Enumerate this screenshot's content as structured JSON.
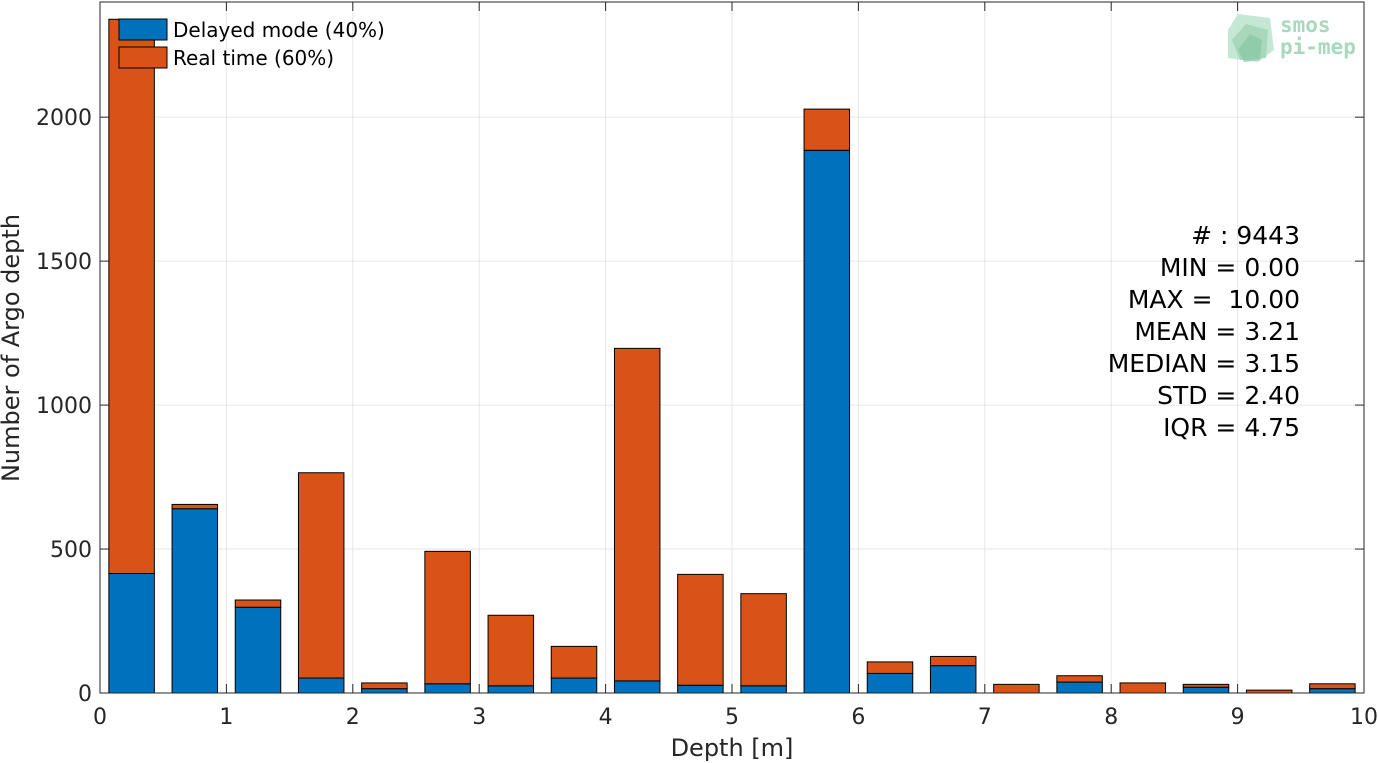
{
  "chart_data": {
    "type": "bar",
    "stacked": true,
    "x": [
      0.25,
      0.75,
      1.25,
      1.75,
      2.25,
      2.75,
      3.25,
      3.75,
      4.25,
      4.75,
      5.25,
      5.75,
      6.25,
      6.75,
      7.25,
      7.75,
      8.25,
      8.75,
      9.25,
      9.75
    ],
    "series": [
      {
        "name": "Delayed mode (40%)",
        "color": "#0072BD",
        "values": [
          415,
          640,
          298,
          52,
          15,
          32,
          25,
          52,
          42,
          27,
          25,
          1885,
          68,
          95,
          0,
          38,
          0,
          20,
          0,
          15
        ]
      },
      {
        "name": "Real time (60%)",
        "color": "#D95319",
        "values": [
          1925,
          15,
          25,
          713,
          20,
          460,
          245,
          110,
          1155,
          385,
          320,
          143,
          40,
          32,
          30,
          22,
          35,
          10,
          10,
          17
        ]
      }
    ],
    "xlabel": "Depth [m]",
    "ylabel": "Number of Argo depth",
    "xlim": [
      0,
      10
    ],
    "ylim": [
      0,
      2400
    ],
    "xticks": [
      0,
      1,
      2,
      3,
      4,
      5,
      6,
      7,
      8,
      9,
      10
    ],
    "yticks": [
      0,
      500,
      1000,
      1500,
      2000
    ],
    "grid": true,
    "legend_position": "top-left",
    "stats": [
      "# : 9443",
      "MIN = 0.00",
      "MAX =  10.00",
      "MEAN = 3.21",
      "MEDIAN = 3.15",
      "STD = 2.40",
      "IQR = 4.75"
    ]
  },
  "logo": {
    "line1": "smos",
    "line2": "pi-mep",
    "color": "#a8d8bd"
  }
}
